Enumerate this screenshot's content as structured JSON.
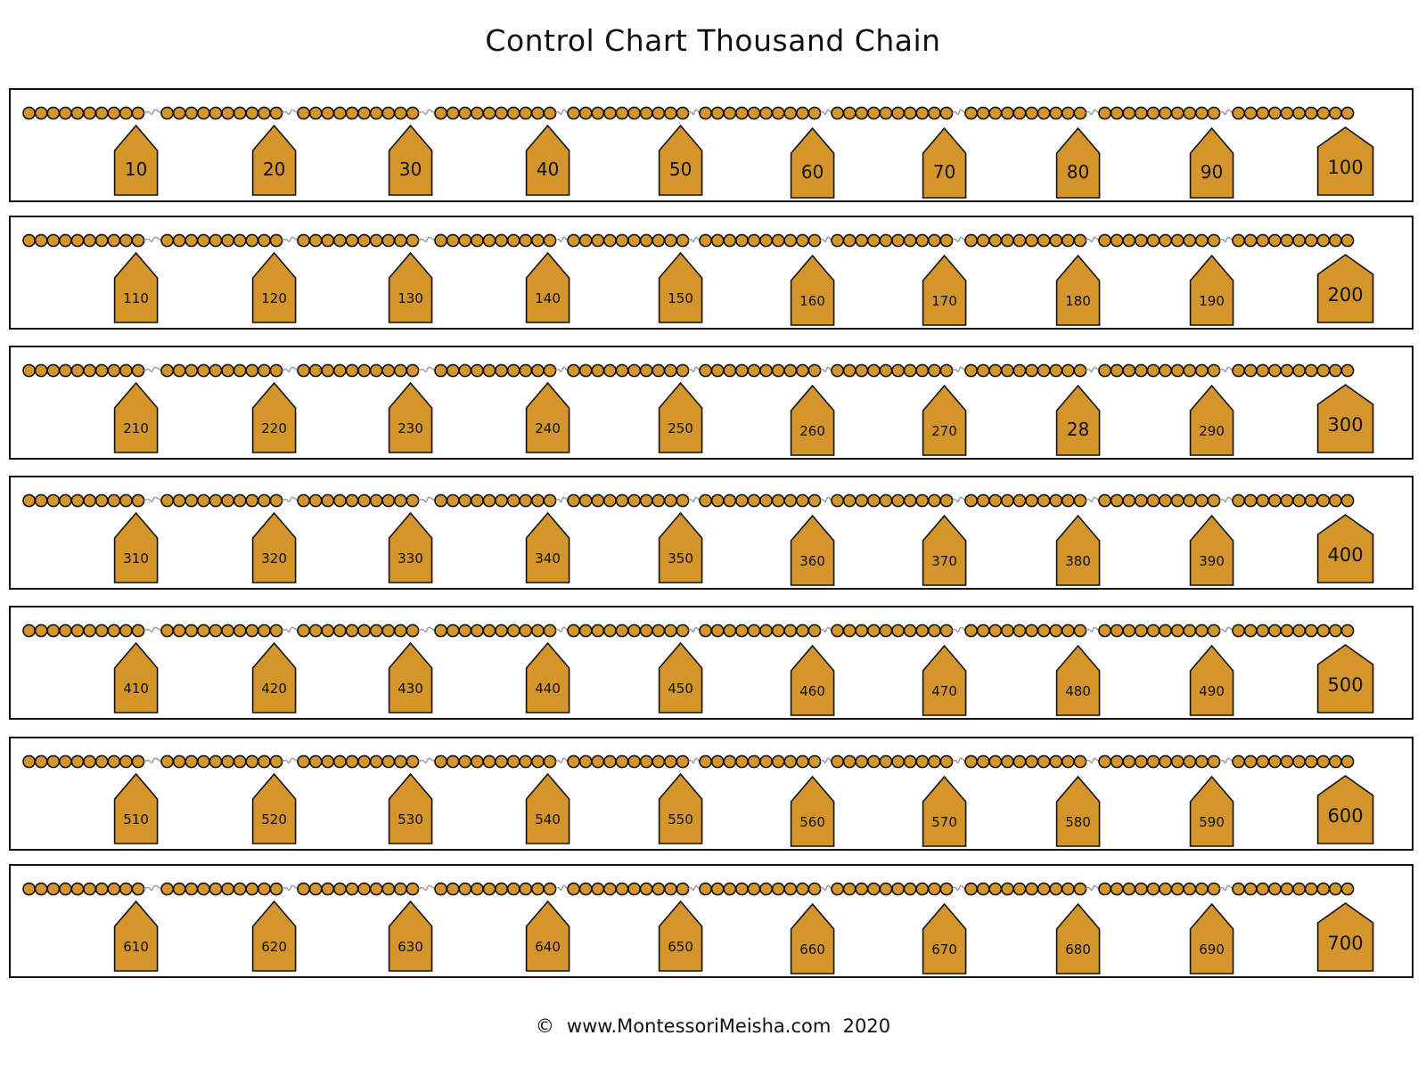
{
  "title": "Control Chart Thousand Chain",
  "footer": {
    "symbol": "©",
    "text": "www.MontessoriMeisha.com  2020"
  },
  "colors": {
    "bead": "#D4962B",
    "tag": "#D4962B",
    "outline": "#111111",
    "connector": "#999999"
  },
  "beads_per_segment": 10,
  "rows": [
    {
      "tags": [
        "10",
        "20",
        "30",
        "40",
        "50",
        "60",
        "70",
        "80",
        "90",
        "100"
      ]
    },
    {
      "tags": [
        "110",
        "120",
        "130",
        "140",
        "150",
        "160",
        "170",
        "180",
        "190",
        "200"
      ]
    },
    {
      "tags": [
        "210",
        "220",
        "230",
        "240",
        "250",
        "260",
        "270",
        "28",
        "290",
        "300"
      ]
    },
    {
      "tags": [
        "310",
        "320",
        "330",
        "340",
        "350",
        "360",
        "370",
        "380",
        "390",
        "400"
      ]
    },
    {
      "tags": [
        "410",
        "420",
        "430",
        "440",
        "450",
        "460",
        "470",
        "480",
        "490",
        "500"
      ]
    },
    {
      "tags": [
        "510",
        "520",
        "530",
        "540",
        "550",
        "560",
        "570",
        "580",
        "590",
        "600"
      ]
    },
    {
      "tags": [
        "610",
        "620",
        "630",
        "640",
        "650",
        "660",
        "670",
        "680",
        "690",
        "700"
      ]
    }
  ]
}
